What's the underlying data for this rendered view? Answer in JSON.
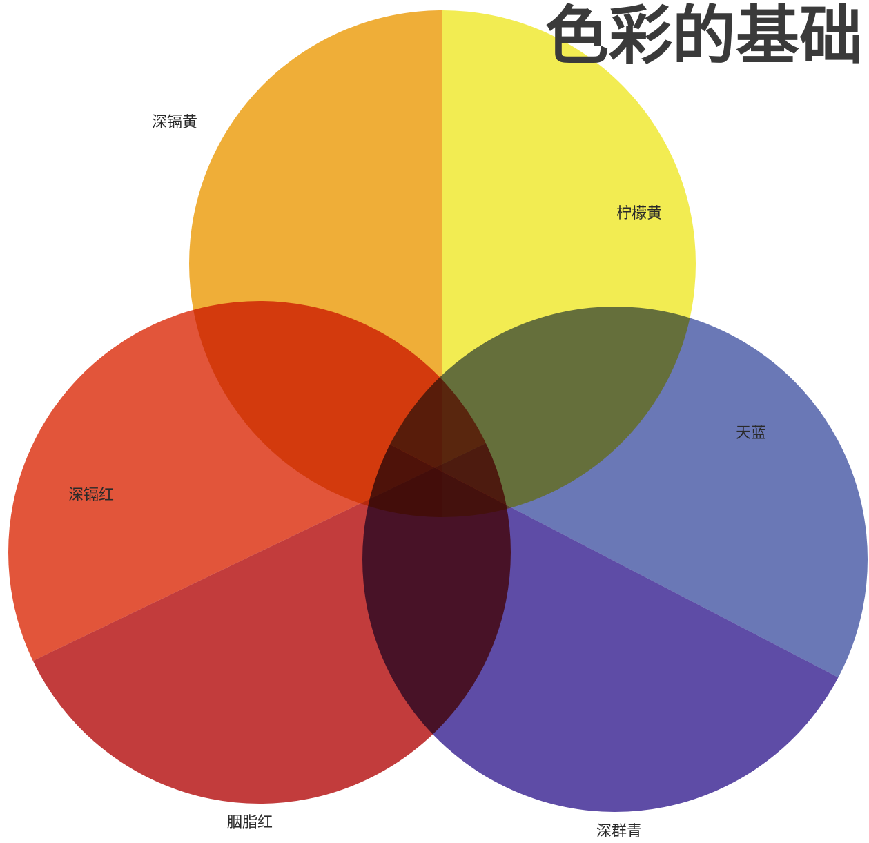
{
  "title": "色彩的基础",
  "labels": {
    "top_left": "深镉黄",
    "top_right": "柠檬黄",
    "right_upper": "天蓝",
    "left_upper": "深镉红",
    "left_lower": "胭脂红",
    "right_lower": "深群青"
  }
}
